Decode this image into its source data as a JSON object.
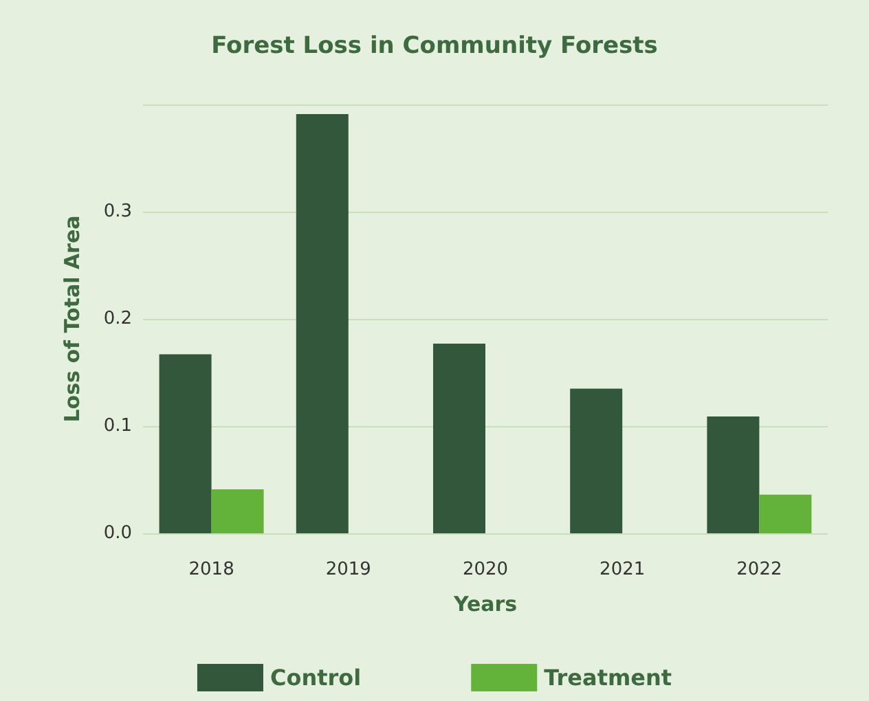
{
  "chart_data": {
    "type": "bar",
    "title": "Forest Loss in Community Forests",
    "xlabel": "Years",
    "ylabel": "Loss of Total Area",
    "categories": [
      "2018",
      "2019",
      "2020",
      "2021",
      "2022"
    ],
    "series": [
      {
        "name": "Control",
        "color": "#33573b",
        "values": [
          0.167,
          0.391,
          0.177,
          0.135,
          0.109
        ]
      },
      {
        "name": "Treatment",
        "color": "#63b33a",
        "values": [
          0.041,
          null,
          null,
          null,
          0.036
        ]
      }
    ],
    "ylim": [
      0,
      0.4
    ],
    "yticks": [
      {
        "value": 0,
        "label": "0.0"
      },
      {
        "value": 0.1,
        "label": "0.1"
      },
      {
        "value": 0.2,
        "label": "0.2"
      },
      {
        "value": 0.3,
        "label": "0.3"
      },
      {
        "value": 0.4,
        "label": null
      }
    ],
    "grid": "y",
    "legend": "bottom"
  }
}
